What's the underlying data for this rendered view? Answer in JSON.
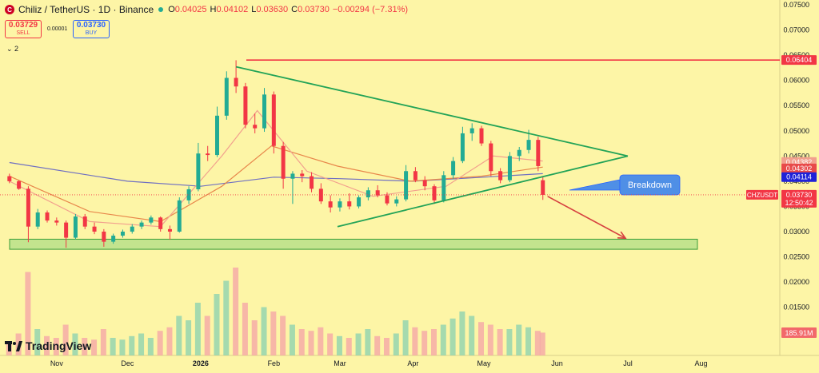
{
  "header": {
    "symbol_badge": "C",
    "title": "Chiliz / TetherUS · 1D · Binance",
    "ohlc": [
      {
        "key": "O",
        "value": "0.04025"
      },
      {
        "key": "H",
        "value": "0.04102"
      },
      {
        "key": "L",
        "value": "0.03630"
      },
      {
        "key": "C",
        "value": "0.03730"
      }
    ],
    "change": "−0.00294 (−7.31%)"
  },
  "trade": {
    "sell_price": "0.03729",
    "sell_label": "SELL",
    "spread": "0.00001",
    "buy_price": "0.03730",
    "buy_label": "BUY"
  },
  "indicators_toggle": "⌄ 2",
  "logo": {
    "name": "TradingView"
  },
  "colors": {
    "background": "#fdf5a6",
    "up": "#22ab94",
    "down": "#f23645",
    "triangle": "#22a357",
    "resistance": "#f23645",
    "support_zone": "#b9e08a",
    "breakdown_label": "#4f8fe6",
    "ma_blue": "#6f6fc2",
    "ma_orange": "#e8874b",
    "ma_pink": "#f2a08e"
  },
  "chart_data": {
    "type": "candlestick",
    "symbol": "CHZUSDT",
    "y_axis": {
      "ticks": [
        "0.07500",
        "0.07000",
        "0.06500",
        "0.06000",
        "0.05500",
        "0.05000",
        "0.04500",
        "0.04000",
        "0.03500",
        "0.03000",
        "0.02500",
        "0.02000",
        "0.01500",
        "0.01000"
      ],
      "range": [
        0.0075,
        0.075
      ]
    },
    "x_axis": {
      "ticks": [
        "Nov",
        "Dec",
        "2026",
        "Feb",
        "Mar",
        "Apr",
        "May",
        "Jun",
        "Jul",
        "Aug"
      ],
      "range": [
        "2025-10-08",
        "2026-08-31"
      ]
    },
    "price_ohlc": [
      [
        "2025-10-12",
        0.041,
        0.0415,
        0.0396,
        0.04
      ],
      [
        "2025-10-16",
        0.04,
        0.0402,
        0.0383,
        0.0385
      ],
      [
        "2025-10-20",
        0.0385,
        0.039,
        0.0279,
        0.031
      ],
      [
        "2025-10-24",
        0.031,
        0.0345,
        0.0305,
        0.0338
      ],
      [
        "2025-10-28",
        0.0338,
        0.0342,
        0.0318,
        0.0322
      ],
      [
        "2025-11-01",
        0.0322,
        0.0328,
        0.0312,
        0.0318
      ],
      [
        "2025-11-05",
        0.0318,
        0.0322,
        0.0268,
        0.0288
      ],
      [
        "2025-11-09",
        0.0288,
        0.0335,
        0.0285,
        0.033
      ],
      [
        "2025-11-13",
        0.033,
        0.0335,
        0.0305,
        0.031
      ],
      [
        "2025-11-17",
        0.031,
        0.0318,
        0.0295,
        0.03
      ],
      [
        "2025-11-21",
        0.03,
        0.0305,
        0.027,
        0.028
      ],
      [
        "2025-11-25",
        0.028,
        0.0296,
        0.0276,
        0.0292
      ],
      [
        "2025-11-29",
        0.0292,
        0.0304,
        0.0288,
        0.03
      ],
      [
        "2025-12-03",
        0.03,
        0.0315,
        0.0296,
        0.031
      ],
      [
        "2025-12-07",
        0.031,
        0.0322,
        0.0305,
        0.0318
      ],
      [
        "2025-12-11",
        0.0318,
        0.0332,
        0.0314,
        0.0328
      ],
      [
        "2025-12-15",
        0.0328,
        0.033,
        0.03,
        0.0305
      ],
      [
        "2025-12-19",
        0.0305,
        0.0312,
        0.0284,
        0.03
      ],
      [
        "2025-12-23",
        0.03,
        0.0368,
        0.0298,
        0.0362
      ],
      [
        "2025-12-27",
        0.0362,
        0.039,
        0.0355,
        0.0384
      ],
      [
        "2025-12-31",
        0.0384,
        0.0476,
        0.038,
        0.0455
      ],
      [
        "2026-01-04",
        0.0455,
        0.047,
        0.044,
        0.0452
      ],
      [
        "2026-01-08",
        0.0452,
        0.0548,
        0.0448,
        0.053
      ],
      [
        "2026-01-12",
        0.053,
        0.0618,
        0.0522,
        0.0605
      ],
      [
        "2026-01-16",
        0.0605,
        0.064,
        0.0575,
        0.0588
      ],
      [
        "2026-01-20",
        0.0588,
        0.0595,
        0.0505,
        0.0512
      ],
      [
        "2026-01-24",
        0.0512,
        0.0534,
        0.0495,
        0.0505
      ],
      [
        "2026-01-28",
        0.0505,
        0.0585,
        0.0498,
        0.0572
      ],
      [
        "2026-02-01",
        0.0572,
        0.0578,
        0.0455,
        0.047
      ],
      [
        "2026-02-05",
        0.047,
        0.0478,
        0.0385,
        0.0405
      ],
      [
        "2026-02-09",
        0.0405,
        0.042,
        0.0355,
        0.0415
      ],
      [
        "2026-02-13",
        0.0415,
        0.0422,
        0.0398,
        0.041
      ],
      [
        "2026-02-17",
        0.041,
        0.0418,
        0.0378,
        0.0385
      ],
      [
        "2026-02-21",
        0.0385,
        0.0396,
        0.0355,
        0.036
      ],
      [
        "2026-02-25",
        0.036,
        0.0372,
        0.0338,
        0.0348
      ],
      [
        "2026-03-01",
        0.0348,
        0.0366,
        0.034,
        0.036
      ],
      [
        "2026-03-05",
        0.036,
        0.0376,
        0.0344,
        0.035
      ],
      [
        "2026-03-09",
        0.035,
        0.0372,
        0.0346,
        0.0368
      ],
      [
        "2026-03-13",
        0.0368,
        0.0388,
        0.0362,
        0.0382
      ],
      [
        "2026-03-17",
        0.0382,
        0.0392,
        0.0368,
        0.0372
      ],
      [
        "2026-03-21",
        0.0372,
        0.0378,
        0.0352,
        0.0356
      ],
      [
        "2026-03-25",
        0.0356,
        0.037,
        0.035,
        0.0364
      ],
      [
        "2026-03-29",
        0.0364,
        0.0432,
        0.036,
        0.042
      ],
      [
        "2026-04-02",
        0.042,
        0.0428,
        0.0398,
        0.0402
      ],
      [
        "2026-04-06",
        0.0402,
        0.041,
        0.0382,
        0.039
      ],
      [
        "2026-04-10",
        0.039,
        0.0394,
        0.0355,
        0.0362
      ],
      [
        "2026-04-14",
        0.0362,
        0.042,
        0.0358,
        0.0412
      ],
      [
        "2026-04-18",
        0.0412,
        0.0448,
        0.0405,
        0.044
      ],
      [
        "2026-04-22",
        0.044,
        0.0508,
        0.0436,
        0.0495
      ],
      [
        "2026-04-26",
        0.0495,
        0.0515,
        0.048,
        0.0505
      ],
      [
        "2026-04-30",
        0.0505,
        0.051,
        0.047,
        0.0475
      ],
      [
        "2026-05-04",
        0.0475,
        0.048,
        0.041,
        0.042
      ],
      [
        "2026-05-08",
        0.042,
        0.0426,
        0.0396,
        0.0402
      ],
      [
        "2026-05-12",
        0.0402,
        0.0458,
        0.0398,
        0.045
      ],
      [
        "2026-05-16",
        0.045,
        0.0468,
        0.044,
        0.0462
      ],
      [
        "2026-05-20",
        0.0462,
        0.0502,
        0.0455,
        0.0482
      ],
      [
        "2026-05-24",
        0.0482,
        0.0488,
        0.042,
        0.043
      ],
      [
        "2026-05-26",
        0.0402,
        0.041,
        0.0363,
        0.0373
      ]
    ],
    "moving_averages": [
      {
        "color": "#6f6fc2",
        "points": [
          [
            "2025-10-12",
            0.0437
          ],
          [
            "2025-12-01",
            0.04
          ],
          [
            "2026-01-01",
            0.039
          ],
          [
            "2026-02-01",
            0.0408
          ],
          [
            "2026-03-01",
            0.0405
          ],
          [
            "2026-04-01",
            0.04
          ],
          [
            "2026-05-01",
            0.0408
          ],
          [
            "2026-05-26",
            0.0415
          ]
        ]
      },
      {
        "color": "#e8874b",
        "points": [
          [
            "2025-10-12",
            0.041
          ],
          [
            "2025-11-15",
            0.034
          ],
          [
            "2025-12-15",
            0.032
          ],
          [
            "2026-01-10",
            0.039
          ],
          [
            "2026-01-31",
            0.047
          ],
          [
            "2026-02-28",
            0.043
          ],
          [
            "2026-03-31",
            0.04
          ],
          [
            "2026-04-30",
            0.041
          ],
          [
            "2026-05-26",
            0.0428
          ]
        ]
      },
      {
        "color": "#f2a08e",
        "points": [
          [
            "2025-10-12",
            0.04
          ],
          [
            "2025-11-15",
            0.032
          ],
          [
            "2025-12-15",
            0.031
          ],
          [
            "2026-01-10",
            0.045
          ],
          [
            "2026-01-25",
            0.054
          ],
          [
            "2026-02-15",
            0.042
          ],
          [
            "2026-03-15",
            0.037
          ],
          [
            "2026-04-15",
            0.039
          ],
          [
            "2026-05-05",
            0.045
          ],
          [
            "2026-05-26",
            0.044
          ]
        ]
      }
    ],
    "volume": {
      "note": "relative bar heights, 0-1",
      "values": [
        0.15,
        0.25,
        0.95,
        0.3,
        0.22,
        0.2,
        0.35,
        0.25,
        0.2,
        0.18,
        0.3,
        0.2,
        0.18,
        0.22,
        0.25,
        0.2,
        0.28,
        0.32,
        0.45,
        0.4,
        0.6,
        0.45,
        0.7,
        0.85,
        1.0,
        0.6,
        0.4,
        0.55,
        0.5,
        0.45,
        0.35,
        0.3,
        0.28,
        0.32,
        0.25,
        0.22,
        0.2,
        0.25,
        0.3,
        0.22,
        0.2,
        0.25,
        0.4,
        0.32,
        0.28,
        0.3,
        0.35,
        0.42,
        0.5,
        0.45,
        0.38,
        0.35,
        0.3,
        0.3,
        0.35,
        0.32,
        0.28,
        0.26
      ]
    },
    "drawings": {
      "resistance_level": 0.06404,
      "triangle_upper": [
        [
          "2026-01-16",
          0.0627
        ],
        [
          "2026-07-01",
          0.045
        ]
      ],
      "triangle_lower": [
        [
          "2026-02-28",
          0.031
        ],
        [
          "2026-07-01",
          0.045
        ]
      ],
      "support_zone": [
        0.0265,
        0.0285
      ],
      "projection_arrow": [
        [
          "2026-05-28",
          0.037
        ],
        [
          "2026-06-30",
          0.0287
        ]
      ],
      "breakdown_label": "Breakdown"
    },
    "price_labels": [
      {
        "text": "0.06404",
        "value": 0.06404,
        "bg": "#f23645"
      },
      {
        "text": "0.04382",
        "value": 0.04382,
        "bg": "#f2a08e"
      },
      {
        "text": "0.04302",
        "value": 0.04302,
        "bg": "#e84a4a"
      },
      {
        "text": "0.04114",
        "value": 0.04114,
        "bg": "#1e22d8"
      },
      {
        "text": "0.03730",
        "value": 0.0373,
        "bg": "#f23645",
        "sub": "12:50:42",
        "symbol": "CHZUSDT"
      }
    ],
    "volume_label": "185.91M",
    "grid": false,
    "ylim": [
      0.0075,
      0.075
    ]
  }
}
